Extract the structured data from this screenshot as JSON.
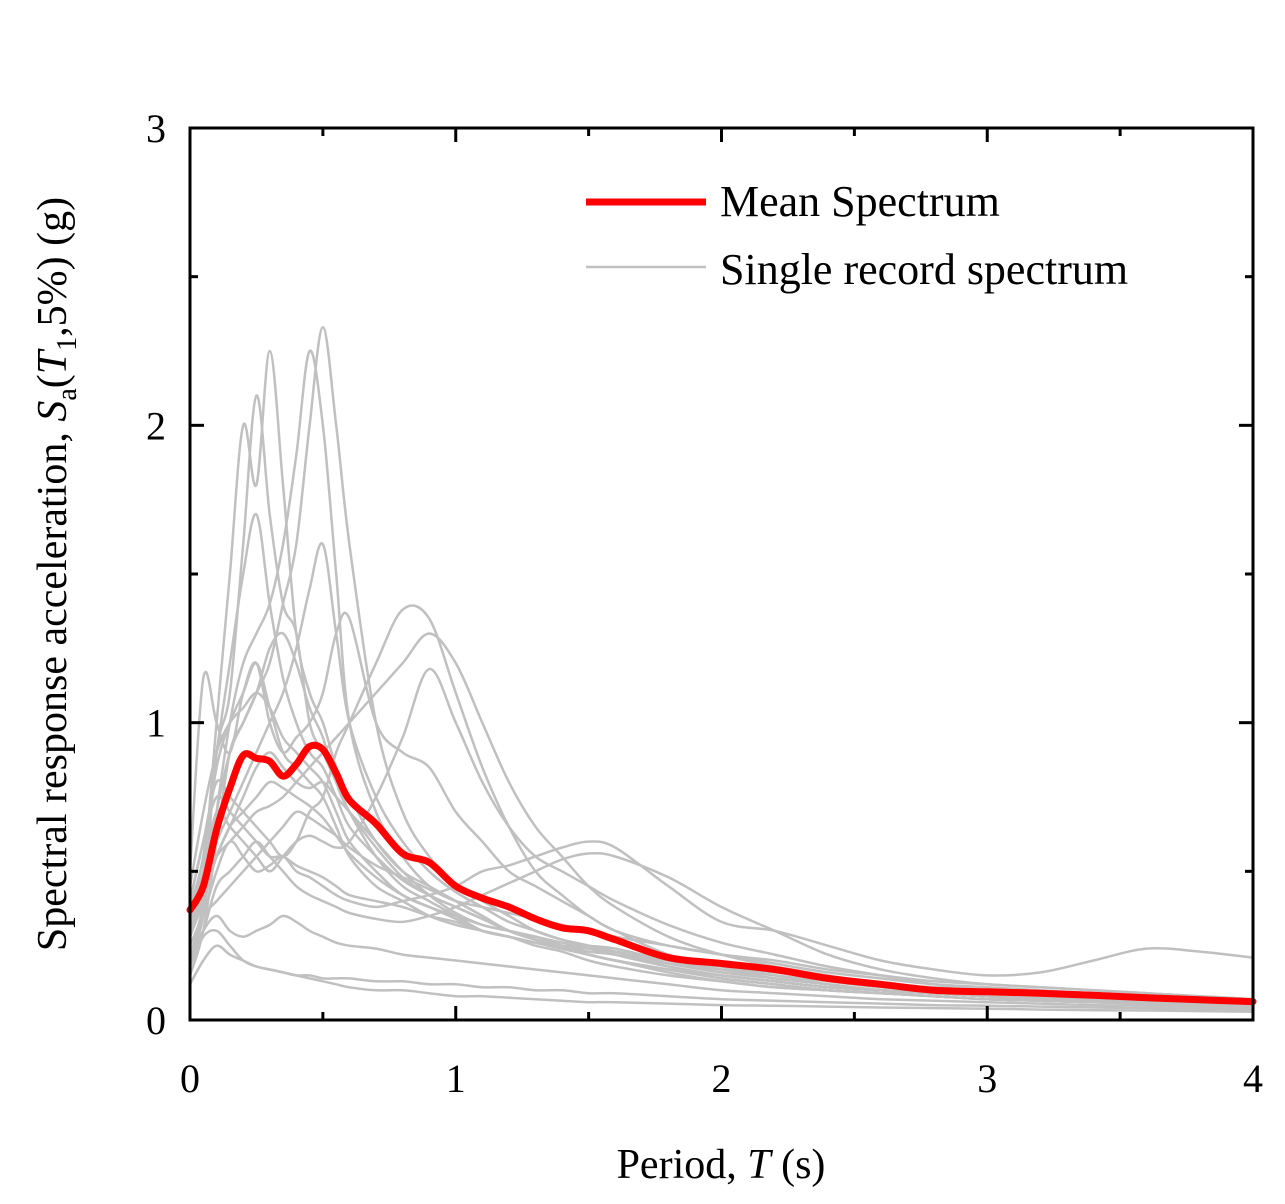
{
  "chart_data": {
    "type": "line",
    "xlabel": "Period, T (s)",
    "ylabel": "Spectral response acceleration, Sa(T1,5%) (g)",
    "xlim": [
      0,
      4
    ],
    "ylim": [
      0,
      3
    ],
    "xticks": [
      "0",
      "1",
      "2",
      "3",
      "4"
    ],
    "yticks": [
      "0",
      "1",
      "2",
      "3"
    ],
    "grid": false,
    "legend_position": "top-right",
    "colors": {
      "mean": "#ff0000",
      "single": "#c0c0c0"
    },
    "legend": [
      {
        "label": "Mean Spectrum",
        "series": "mean"
      },
      {
        "label": "Single record spectrum",
        "series": "single"
      }
    ],
    "mean_series": {
      "name": "Mean Spectrum",
      "x": [
        0,
        0.05,
        0.1,
        0.15,
        0.2,
        0.25,
        0.3,
        0.35,
        0.4,
        0.45,
        0.5,
        0.55,
        0.6,
        0.7,
        0.8,
        0.9,
        1.0,
        1.1,
        1.2,
        1.3,
        1.4,
        1.5,
        1.6,
        1.8,
        2.0,
        2.2,
        2.4,
        2.6,
        2.8,
        3.0,
        3.2,
        3.4,
        3.6,
        3.8,
        4.0
      ],
      "y": [
        0.37,
        0.45,
        0.64,
        0.78,
        0.89,
        0.88,
        0.87,
        0.82,
        0.86,
        0.92,
        0.91,
        0.83,
        0.74,
        0.66,
        0.56,
        0.53,
        0.45,
        0.41,
        0.38,
        0.34,
        0.31,
        0.3,
        0.27,
        0.21,
        0.19,
        0.17,
        0.14,
        0.12,
        0.1,
        0.095,
        0.09,
        0.083,
        0.075,
        0.068,
        0.062
      ]
    },
    "single_series": {
      "name": "Single record spectrum",
      "x": [
        0,
        0.05,
        0.1,
        0.15,
        0.2,
        0.25,
        0.3,
        0.35,
        0.4,
        0.45,
        0.5,
        0.55,
        0.6,
        0.7,
        0.8,
        0.9,
        1.0,
        1.1,
        1.2,
        1.3,
        1.4,
        1.5,
        1.6,
        1.8,
        2.0,
        2.2,
        2.4,
        2.6,
        2.8,
        3.0,
        3.2,
        3.4,
        3.6,
        3.8,
        4.0
      ],
      "records": [
        [
          0.25,
          0.4,
          0.9,
          1.1,
          1.6,
          2.1,
          1.7,
          1.4,
          1.3,
          1.0,
          0.9,
          0.8,
          0.7,
          0.55,
          0.45,
          0.4,
          0.35,
          0.3,
          0.28,
          0.26,
          0.24,
          0.22,
          0.2,
          0.17,
          0.14,
          0.12,
          0.1,
          0.09,
          0.08,
          0.07,
          0.065,
          0.06,
          0.055,
          0.05,
          0.045
        ],
        [
          0.3,
          0.5,
          1.0,
          1.5,
          2.0,
          1.8,
          2.25,
          1.8,
          1.3,
          1.1,
          1.0,
          0.85,
          0.75,
          0.6,
          0.5,
          0.45,
          0.4,
          0.35,
          0.3,
          0.28,
          0.25,
          0.22,
          0.2,
          0.16,
          0.13,
          0.11,
          0.1,
          0.09,
          0.08,
          0.07,
          0.065,
          0.06,
          0.055,
          0.05,
          0.045
        ],
        [
          0.2,
          0.35,
          0.7,
          1.0,
          1.2,
          1.3,
          1.4,
          1.6,
          1.9,
          2.25,
          2.0,
          1.5,
          1.0,
          0.7,
          0.55,
          0.45,
          0.4,
          0.35,
          0.3,
          0.27,
          0.25,
          0.22,
          0.2,
          0.17,
          0.15,
          0.13,
          0.11,
          0.1,
          0.09,
          0.08,
          0.07,
          0.065,
          0.06,
          0.055,
          0.05
        ],
        [
          0.15,
          0.3,
          0.6,
          0.9,
          1.0,
          1.1,
          1.2,
          1.4,
          1.6,
          2.0,
          2.33,
          2.0,
          1.6,
          1.0,
          0.7,
          0.55,
          0.45,
          0.4,
          0.35,
          0.3,
          0.27,
          0.25,
          0.22,
          0.18,
          0.15,
          0.13,
          0.11,
          0.1,
          0.09,
          0.08,
          0.07,
          0.065,
          0.06,
          0.055,
          0.05
        ],
        [
          0.5,
          1.15,
          1.0,
          0.9,
          1.1,
          1.2,
          1.0,
          0.9,
          0.95,
          1.0,
          1.1,
          1.3,
          1.35,
          1.0,
          0.9,
          0.85,
          0.7,
          0.6,
          0.5,
          0.45,
          0.4,
          0.35,
          0.3,
          0.25,
          0.22,
          0.2,
          0.17,
          0.15,
          0.13,
          0.12,
          0.11,
          0.1,
          0.09,
          0.08,
          0.07
        ],
        [
          0.4,
          0.6,
          0.8,
          0.75,
          0.7,
          0.65,
          0.6,
          0.55,
          0.6,
          0.7,
          0.75,
          0.9,
          1.0,
          1.2,
          1.38,
          1.35,
          1.1,
          0.85,
          0.65,
          0.5,
          0.42,
          0.35,
          0.3,
          0.22,
          0.18,
          0.15,
          0.12,
          0.1,
          0.09,
          0.08,
          0.07,
          0.065,
          0.06,
          0.055,
          0.05
        ],
        [
          0.3,
          0.45,
          0.55,
          0.6,
          0.65,
          0.7,
          0.72,
          0.75,
          0.8,
          0.85,
          0.9,
          0.95,
          1.0,
          1.1,
          1.2,
          1.3,
          1.2,
          1.0,
          0.8,
          0.65,
          0.55,
          0.45,
          0.38,
          0.28,
          0.22,
          0.18,
          0.15,
          0.12,
          0.1,
          0.09,
          0.08,
          0.07,
          0.065,
          0.06,
          0.055
        ],
        [
          0.35,
          0.5,
          0.7,
          0.65,
          0.6,
          0.55,
          0.5,
          0.55,
          0.6,
          0.62,
          0.6,
          0.58,
          0.6,
          0.75,
          0.95,
          1.18,
          1.0,
          0.8,
          0.65,
          0.55,
          0.5,
          0.45,
          0.4,
          0.32,
          0.26,
          0.22,
          0.18,
          0.15,
          0.12,
          0.1,
          0.09,
          0.08,
          0.07,
          0.065,
          0.06
        ],
        [
          0.22,
          0.35,
          0.5,
          0.6,
          0.55,
          0.5,
          0.52,
          0.55,
          0.5,
          0.48,
          0.45,
          0.42,
          0.4,
          0.38,
          0.4,
          0.42,
          0.45,
          0.5,
          0.52,
          0.55,
          0.58,
          0.6,
          0.58,
          0.45,
          0.33,
          0.3,
          0.25,
          0.2,
          0.17,
          0.15,
          0.16,
          0.2,
          0.24,
          0.23,
          0.21
        ],
        [
          0.2,
          0.3,
          0.45,
          0.5,
          0.55,
          0.6,
          0.55,
          0.5,
          0.45,
          0.42,
          0.4,
          0.38,
          0.36,
          0.34,
          0.33,
          0.35,
          0.38,
          0.42,
          0.46,
          0.5,
          0.54,
          0.56,
          0.55,
          0.48,
          0.38,
          0.3,
          0.22,
          0.17,
          0.14,
          0.12,
          0.11,
          0.1,
          0.09,
          0.08,
          0.07
        ],
        [
          0.18,
          0.28,
          0.3,
          0.25,
          0.2,
          0.18,
          0.17,
          0.16,
          0.15,
          0.15,
          0.14,
          0.14,
          0.14,
          0.13,
          0.13,
          0.12,
          0.12,
          0.11,
          0.11,
          0.1,
          0.1,
          0.09,
          0.09,
          0.08,
          0.07,
          0.065,
          0.06,
          0.055,
          0.05,
          0.048,
          0.045,
          0.042,
          0.04,
          0.038,
          0.035
        ],
        [
          0.12,
          0.2,
          0.25,
          0.22,
          0.2,
          0.18,
          0.17,
          0.16,
          0.15,
          0.14,
          0.13,
          0.12,
          0.11,
          0.1,
          0.1,
          0.09,
          0.08,
          0.08,
          0.075,
          0.07,
          0.065,
          0.06,
          0.06,
          0.055,
          0.05,
          0.048,
          0.045,
          0.042,
          0.04,
          0.038,
          0.035,
          0.033,
          0.032,
          0.03,
          0.028
        ],
        [
          0.45,
          0.7,
          0.9,
          1.0,
          1.05,
          1.1,
          1.05,
          0.95,
          0.9,
          0.85,
          0.8,
          0.7,
          0.6,
          0.5,
          0.42,
          0.38,
          0.35,
          0.32,
          0.3,
          0.28,
          0.26,
          0.24,
          0.22,
          0.18,
          0.15,
          0.13,
          0.11,
          0.1,
          0.09,
          0.08,
          0.07,
          0.065,
          0.06,
          0.055,
          0.05
        ],
        [
          0.35,
          0.55,
          0.85,
          1.0,
          1.1,
          1.2,
          1.05,
          0.9,
          0.85,
          0.8,
          0.75,
          0.65,
          0.55,
          0.45,
          0.4,
          0.35,
          0.32,
          0.3,
          0.28,
          0.25,
          0.23,
          0.2,
          0.18,
          0.15,
          0.13,
          0.11,
          0.1,
          0.09,
          0.08,
          0.07,
          0.065,
          0.06,
          0.055,
          0.05,
          0.045
        ],
        [
          0.28,
          0.4,
          0.55,
          0.65,
          0.75,
          0.85,
          0.9,
          0.85,
          0.8,
          0.78,
          0.8,
          0.75,
          0.7,
          0.6,
          0.5,
          0.42,
          0.36,
          0.32,
          0.3,
          0.28,
          0.26,
          0.25,
          0.24,
          0.2,
          0.17,
          0.14,
          0.12,
          0.1,
          0.09,
          0.08,
          0.07,
          0.065,
          0.06,
          0.055,
          0.05
        ],
        [
          0.3,
          0.45,
          0.7,
          0.9,
          1.0,
          1.1,
          1.25,
          1.3,
          1.2,
          1.05,
          0.95,
          0.8,
          0.7,
          0.58,
          0.48,
          0.42,
          0.38,
          0.34,
          0.3,
          0.27,
          0.25,
          0.23,
          0.22,
          0.19,
          0.17,
          0.15,
          0.13,
          0.11,
          0.1,
          0.09,
          0.08,
          0.075,
          0.07,
          0.065,
          0.06
        ],
        [
          0.4,
          0.6,
          0.75,
          0.7,
          0.65,
          0.6,
          0.55,
          0.55,
          0.52,
          0.5,
          0.48,
          0.45,
          0.42,
          0.4,
          0.38,
          0.35,
          0.33,
          0.3,
          0.28,
          0.26,
          0.25,
          0.24,
          0.23,
          0.2,
          0.18,
          0.16,
          0.14,
          0.12,
          0.11,
          0.1,
          0.09,
          0.08,
          0.075,
          0.07,
          0.065
        ],
        [
          0.25,
          0.35,
          0.4,
          0.45,
          0.5,
          0.55,
          0.6,
          0.65,
          0.7,
          0.68,
          0.65,
          0.62,
          0.58,
          0.52,
          0.48,
          0.44,
          0.4,
          0.38,
          0.36,
          0.34,
          0.32,
          0.3,
          0.28,
          0.25,
          0.22,
          0.19,
          0.16,
          0.14,
          0.12,
          0.11,
          0.1,
          0.09,
          0.08,
          0.075,
          0.07
        ],
        [
          0.2,
          0.3,
          0.35,
          0.3,
          0.28,
          0.3,
          0.32,
          0.35,
          0.33,
          0.3,
          0.28,
          0.26,
          0.25,
          0.24,
          0.22,
          0.21,
          0.2,
          0.19,
          0.18,
          0.17,
          0.16,
          0.15,
          0.14,
          0.12,
          0.1,
          0.09,
          0.08,
          0.07,
          0.065,
          0.06,
          0.055,
          0.05,
          0.048,
          0.045,
          0.042
        ],
        [
          0.3,
          0.42,
          0.55,
          0.65,
          0.7,
          0.75,
          0.8,
          0.78,
          0.75,
          0.72,
          0.68,
          0.62,
          0.56,
          0.48,
          0.42,
          0.38,
          0.34,
          0.3,
          0.28,
          0.26,
          0.24,
          0.22,
          0.2,
          0.17,
          0.15,
          0.13,
          0.11,
          0.1,
          0.09,
          0.08,
          0.075,
          0.07,
          0.065,
          0.06,
          0.055
        ],
        [
          0.38,
          0.55,
          0.9,
          1.2,
          1.5,
          1.7,
          1.4,
          1.15,
          1.0,
          0.9,
          0.85,
          0.75,
          0.65,
          0.55,
          0.47,
          0.42,
          0.38,
          0.34,
          0.3,
          0.27,
          0.24,
          0.22,
          0.2,
          0.17,
          0.14,
          0.12,
          0.1,
          0.09,
          0.08,
          0.07,
          0.065,
          0.06,
          0.055,
          0.05,
          0.045
        ],
        [
          0.33,
          0.48,
          0.6,
          0.7,
          0.8,
          0.9,
          1.0,
          1.1,
          1.25,
          1.45,
          1.6,
          1.3,
          1.0,
          0.75,
          0.6,
          0.5,
          0.43,
          0.38,
          0.33,
          0.3,
          0.27,
          0.25,
          0.23,
          0.19,
          0.16,
          0.14,
          0.12,
          0.1,
          0.09,
          0.08,
          0.07,
          0.065,
          0.06,
          0.055,
          0.05
        ]
      ]
    }
  }
}
